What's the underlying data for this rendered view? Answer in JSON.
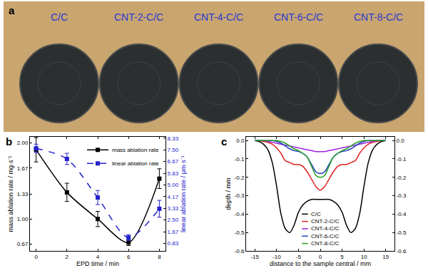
{
  "photo": {
    "title": "a",
    "labels": [
      "C/C",
      "CNT-2-C/C",
      "CNT-4-C/C",
      "CNT-6-C/C",
      "CNT-8-C/C"
    ]
  },
  "chart_data": [
    {
      "type": "line",
      "title": "b",
      "x": [
        0,
        2,
        4,
        6,
        8
      ],
      "xlabel": "EPD time / min",
      "ylabel": "mass ablation rate / mg·s⁻¹",
      "y2label": "linear ablation rate / μm·s⁻¹",
      "xlim": [
        -0.4,
        8.4
      ],
      "xticks": [
        0,
        2,
        4,
        6,
        8
      ],
      "ylim": [
        0.58,
        2.08
      ],
      "yticks": [
        0.67,
        {
          "value": 1,
          "label": "1.00"
        },
        1.33,
        1.67,
        {
          "value": 2,
          "label": "2.00"
        }
      ],
      "y2lim": [
        0.3,
        8.42
      ],
      "y2ticks": [
        0.83,
        1.67,
        {
          "value": 2.5,
          "label": "2.50"
        },
        3.33,
        4.17,
        {
          "value": 5,
          "label": "5.00"
        },
        5.83,
        6.67,
        {
          "value": 7.5,
          "label": "7.50"
        },
        8.33
      ],
      "legend": "upper right",
      "series": [
        {
          "name": "mass ablation rate",
          "color": "#000000",
          "marker": "square",
          "line_style": "solid",
          "values": [
            1.91,
            1.35,
            1.0,
            0.69,
            1.53
          ],
          "error": [
            0.16,
            0.12,
            0.1,
            0.04,
            0.13
          ]
        },
        {
          "name": "linear ablation rate",
          "color": "#2222cc",
          "marker": "square",
          "line_style": "dash",
          "axis": "y2",
          "values": [
            7.6,
            6.85,
            4.1,
            1.25,
            3.3
          ],
          "error": [
            0.3,
            0.4,
            0.5,
            0.2,
            0.6
          ]
        }
      ]
    },
    {
      "type": "line",
      "title": "c",
      "x": [
        -15,
        -14,
        -13,
        -12,
        -11,
        -10,
        -9,
        -8,
        -7,
        -6,
        -5,
        -4,
        -3,
        -2,
        -1,
        0,
        1,
        2,
        3,
        4,
        5,
        6,
        7,
        8,
        9,
        10,
        11,
        12,
        13,
        14,
        15
      ],
      "xlabel": "distance to the sample central / mm",
      "ylabel": "depth / mm",
      "xlim": [
        -17,
        17
      ],
      "xticks": [
        -15,
        -10,
        -5,
        0,
        5,
        10,
        15
      ],
      "ylim": [
        -0.6,
        0.02
      ],
      "yticks": [
        {
          "value": 0,
          "label": "0.0"
        },
        -0.1,
        -0.2,
        -0.3,
        -0.4,
        -0.5,
        -0.6
      ],
      "legend": "lower center",
      "series": [
        {
          "name": "C/C",
          "color": "#000000",
          "line_style": "solid",
          "values": [
            0,
            -0.005,
            -0.02,
            -0.05,
            -0.12,
            -0.25,
            -0.4,
            -0.48,
            -0.5,
            -0.46,
            -0.39,
            -0.35,
            -0.33,
            -0.32,
            -0.32,
            -0.32,
            -0.32,
            -0.32,
            -0.33,
            -0.35,
            -0.39,
            -0.46,
            -0.5,
            -0.48,
            -0.4,
            -0.25,
            -0.12,
            -0.05,
            -0.02,
            -0.005,
            0
          ]
        },
        {
          "name": "CNT-2-C/C",
          "color": "#e02020",
          "line_style": "solid",
          "values": [
            0,
            0,
            -0.005,
            -0.01,
            -0.02,
            -0.04,
            -0.07,
            -0.11,
            -0.12,
            -0.13,
            -0.13,
            -0.14,
            -0.17,
            -0.21,
            -0.25,
            -0.27,
            -0.25,
            -0.21,
            -0.17,
            -0.14,
            -0.13,
            -0.13,
            -0.12,
            -0.11,
            -0.07,
            -0.04,
            -0.02,
            -0.01,
            -0.005,
            0,
            0
          ]
        },
        {
          "name": "CNT-4-C/C",
          "color": "#a020e0",
          "line_style": "solid",
          "values": [
            0,
            0,
            0,
            -0.005,
            -0.01,
            -0.015,
            -0.02,
            -0.025,
            -0.03,
            -0.035,
            -0.04,
            -0.045,
            -0.05,
            -0.055,
            -0.06,
            -0.06,
            -0.06,
            -0.055,
            -0.05,
            -0.045,
            -0.04,
            -0.035,
            -0.03,
            -0.025,
            -0.02,
            -0.015,
            -0.01,
            -0.005,
            0,
            0,
            0
          ]
        },
        {
          "name": "CNT-6-C/C",
          "color": "#2040c0",
          "line_style": "solid",
          "values": [
            0,
            0,
            0,
            0,
            0,
            -0.005,
            -0.015,
            -0.03,
            -0.045,
            -0.055,
            -0.06,
            -0.07,
            -0.09,
            -0.13,
            -0.17,
            -0.18,
            -0.17,
            -0.13,
            -0.09,
            -0.07,
            -0.06,
            -0.055,
            -0.045,
            -0.03,
            -0.015,
            -0.005,
            0,
            0,
            0,
            0,
            0
          ]
        },
        {
          "name": "CNT-8-C/C",
          "color": "#22a022",
          "line_style": "solid",
          "values": [
            0,
            0,
            0,
            0,
            0,
            0,
            -0.005,
            -0.015,
            -0.03,
            -0.045,
            -0.055,
            -0.07,
            -0.09,
            -0.14,
            -0.19,
            -0.2,
            -0.19,
            -0.14,
            -0.09,
            -0.07,
            -0.055,
            -0.045,
            -0.03,
            -0.015,
            -0.005,
            0,
            0,
            0,
            0,
            0,
            0
          ]
        }
      ]
    }
  ]
}
